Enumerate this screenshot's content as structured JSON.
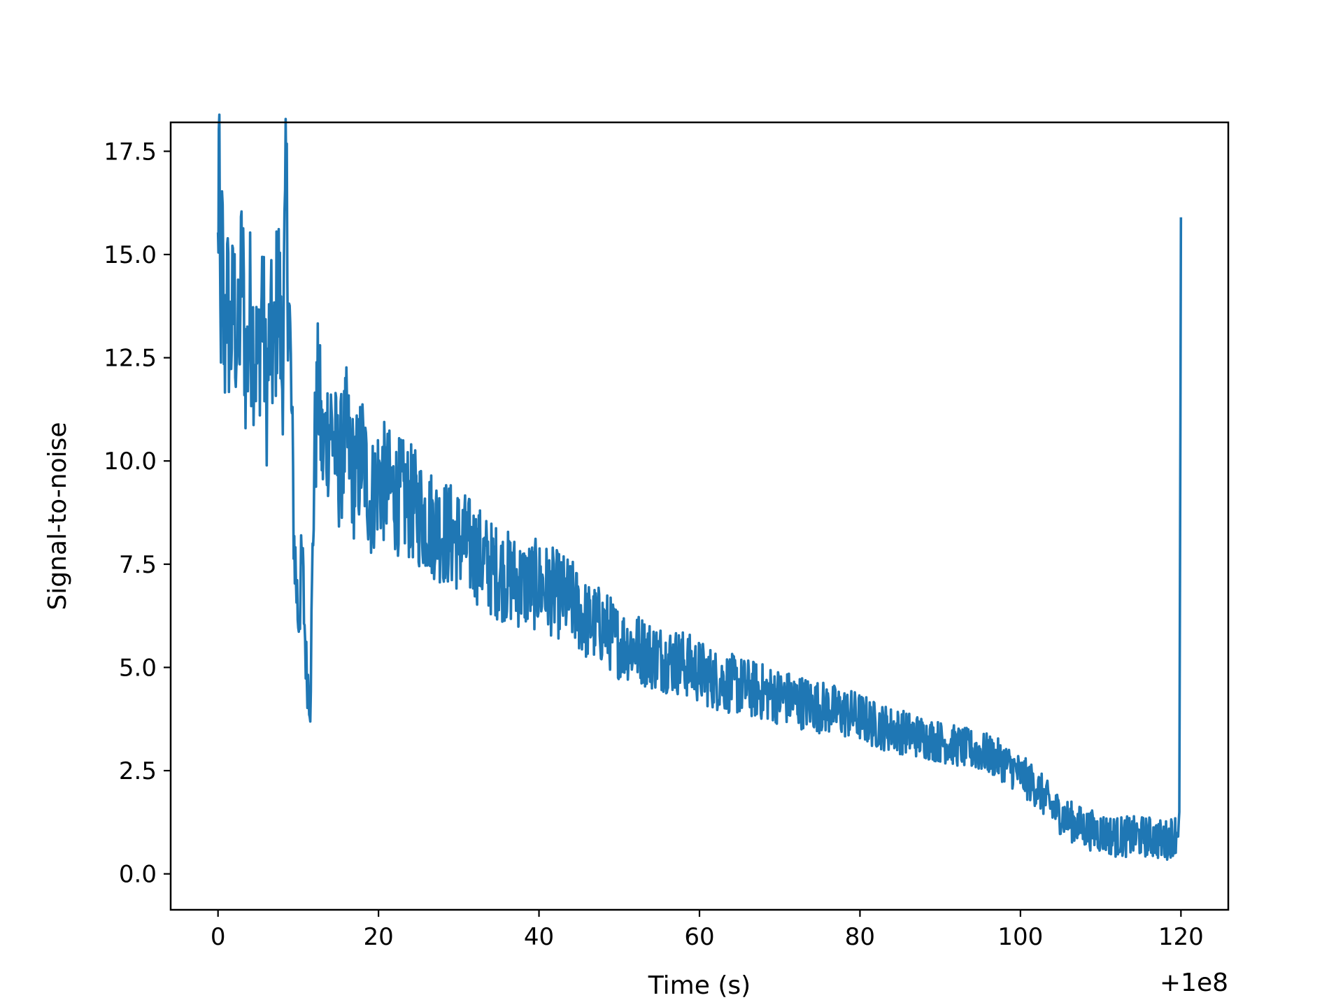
{
  "chart_data": {
    "type": "line",
    "title": "",
    "xlabel": "Time (s)",
    "ylabel": "Signal-to-noise",
    "x_offset_label": "+1e8",
    "xlim": [
      -5.9,
      125.9
    ],
    "ylim": [
      -0.87,
      18.2
    ],
    "x_ticks": [
      0,
      20,
      40,
      60,
      80,
      100,
      120
    ],
    "x_tick_labels": [
      "0",
      "20",
      "40",
      "60",
      "80",
      "100",
      "120"
    ],
    "y_ticks": [
      0.0,
      2.5,
      5.0,
      7.5,
      10.0,
      12.5,
      15.0,
      17.5
    ],
    "y_tick_labels": [
      "0.0",
      "2.5",
      "5.0",
      "7.5",
      "10.0",
      "12.5",
      "15.0",
      "17.5"
    ],
    "grid": false,
    "legend": "none",
    "series": [
      {
        "color": "#1f77b4",
        "x": [
          0.0,
          0.1,
          0.3,
          0.5,
          0.8,
          1.0,
          1.5,
          2.0,
          2.5,
          3.0,
          3.5,
          4.0,
          4.5,
          5.0,
          5.5,
          6.0,
          6.5,
          7.0,
          7.5,
          8.0,
          8.5,
          9.0,
          9.5,
          10.0,
          10.5,
          11.0,
          11.5,
          12.0,
          12.5,
          13.0,
          14.0,
          15.0,
          16.0,
          17.0,
          18.0,
          19.0,
          20.0,
          22.0,
          24.0,
          26.0,
          28.0,
          30.0,
          32.0,
          34.0,
          36.0,
          38.0,
          40.0,
          42.0,
          44.0,
          46.0,
          48.0,
          50.0,
          52.0,
          54.0,
          56.0,
          58.0,
          60.0,
          62.0,
          64.0,
          66.0,
          68.0,
          70.0,
          72.0,
          74.0,
          76.0,
          78.0,
          80.0,
          82.0,
          84.0,
          86.0,
          88.0,
          90.0,
          92.0,
          94.0,
          96.0,
          98.0,
          100.0,
          102.0,
          104.0,
          106.0,
          108.0,
          110.0,
          112.0,
          114.0,
          116.0,
          118.0,
          119.5,
          119.8,
          120.0
        ],
        "y": [
          14.8,
          17.3,
          13.0,
          15.5,
          12.2,
          14.4,
          12.9,
          13.8,
          12.5,
          14.9,
          12.0,
          13.6,
          12.8,
          12.3,
          14.2,
          11.5,
          13.0,
          12.4,
          14.6,
          12.0,
          16.4,
          12.6,
          8.0,
          6.2,
          7.5,
          5.0,
          4.2,
          10.0,
          11.8,
          10.2,
          11.0,
          9.8,
          10.6,
          9.5,
          10.2,
          9.0,
          9.6,
          9.2,
          9.0,
          8.6,
          8.3,
          8.1,
          7.8,
          7.4,
          7.2,
          7.0,
          7.0,
          6.8,
          6.6,
          6.1,
          6.0,
          5.6,
          5.5,
          5.3,
          5.2,
          5.1,
          4.9,
          4.7,
          4.6,
          4.5,
          4.4,
          4.3,
          4.2,
          4.1,
          4.0,
          3.9,
          3.8,
          3.6,
          3.5,
          3.4,
          3.3,
          3.2,
          3.1,
          3.0,
          2.9,
          2.7,
          2.4,
          2.1,
          1.6,
          1.3,
          1.1,
          1.0,
          0.9,
          0.9,
          0.9,
          0.8,
          1.0,
          1.5,
          15.9
        ]
      }
    ]
  }
}
